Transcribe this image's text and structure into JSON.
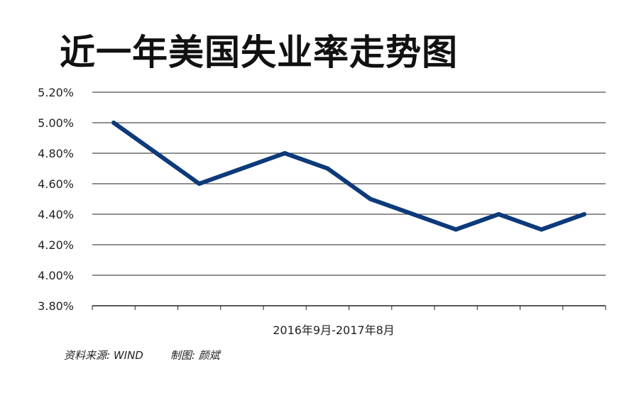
{
  "title": "近一年美国失业率走势图",
  "footer": {
    "source": "资料来源: WIND",
    "author": "制图: 颜斌"
  },
  "colors": {
    "line": "#0d3a7a",
    "grid": "#222222",
    "text": "#222222"
  },
  "chart_data": {
    "type": "line",
    "title": "近一年美国失业率走势图",
    "xlabel": "2016年9月-2017年8月",
    "ylabel": "",
    "ylim": [
      3.8,
      5.2
    ],
    "y_ticks": [
      "3.80%",
      "4.00%",
      "4.20%",
      "4.40%",
      "4.60%",
      "4.80%",
      "5.00%",
      "5.20%"
    ],
    "grid": true,
    "legend": "none",
    "x_count": 12,
    "values": [
      5.0,
      4.8,
      4.6,
      4.7,
      4.8,
      4.7,
      4.5,
      4.4,
      4.3,
      4.4,
      4.3,
      4.4
    ]
  }
}
